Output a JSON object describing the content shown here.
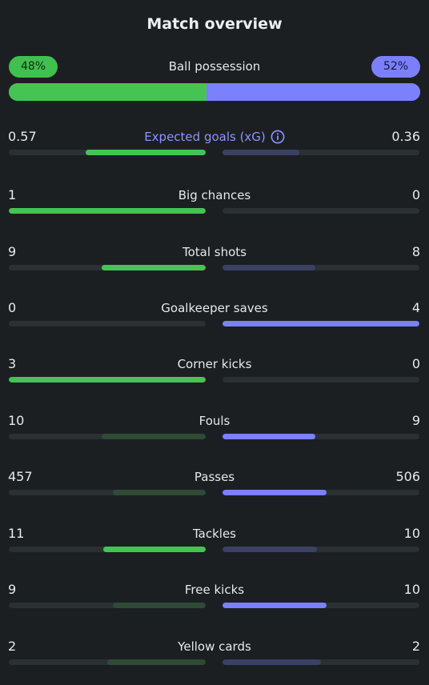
{
  "title": "Match overview",
  "possession": {
    "label": "Ball possession",
    "home": "48%",
    "away": "52%",
    "home_fraction": 0.48,
    "away_fraction": 0.52
  },
  "stats": [
    {
      "label": "Expected goals (xG)",
      "home": "0.57",
      "away": "0.36",
      "home_fraction": 0.61,
      "away_fraction": 0.39,
      "home_strong": true,
      "away_strong": false,
      "accent": true,
      "info": true
    },
    {
      "label": "Big chances",
      "home": "1",
      "away": "0",
      "home_fraction": 1.0,
      "away_fraction": 0.0,
      "home_strong": true,
      "away_strong": false
    },
    {
      "label": "Total shots",
      "home": "9",
      "away": "8",
      "home_fraction": 0.53,
      "away_fraction": 0.47,
      "home_strong": true,
      "away_strong": false
    },
    {
      "label": "Goalkeeper saves",
      "home": "0",
      "away": "4",
      "home_fraction": 0.0,
      "away_fraction": 1.0,
      "home_strong": false,
      "away_strong": true
    },
    {
      "label": "Corner kicks",
      "home": "3",
      "away": "0",
      "home_fraction": 1.0,
      "away_fraction": 0.0,
      "home_strong": true,
      "away_strong": false
    },
    {
      "label": "Fouls",
      "home": "10",
      "away": "9",
      "home_fraction": 0.53,
      "away_fraction": 0.47,
      "home_strong": false,
      "away_strong": true
    },
    {
      "label": "Passes",
      "home": "457",
      "away": "506",
      "home_fraction": 0.47,
      "away_fraction": 0.53,
      "home_strong": false,
      "away_strong": true
    },
    {
      "label": "Tackles",
      "home": "11",
      "away": "10",
      "home_fraction": 0.52,
      "away_fraction": 0.48,
      "home_strong": true,
      "away_strong": false
    },
    {
      "label": "Free kicks",
      "home": "9",
      "away": "10",
      "home_fraction": 0.47,
      "away_fraction": 0.53,
      "home_strong": false,
      "away_strong": true
    },
    {
      "label": "Yellow cards",
      "home": "2",
      "away": "2",
      "home_fraction": 0.5,
      "away_fraction": 0.5,
      "home_strong": false,
      "away_strong": false
    }
  ],
  "colors": {
    "home": "#46c453",
    "away": "#7b80fb",
    "background": "#1b1f22"
  },
  "icons": {
    "xg_info": "info-icon"
  }
}
